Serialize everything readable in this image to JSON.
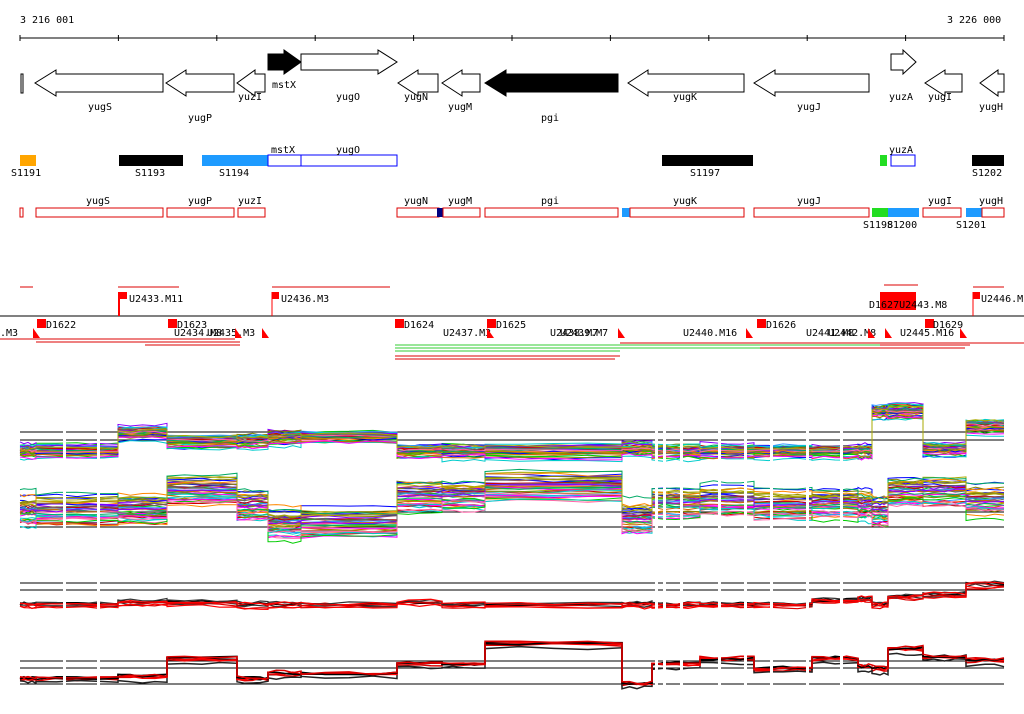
{
  "coords": {
    "start": "3 216 001",
    "end": "3 226 000"
  },
  "colors": {
    "black": "#000000",
    "red": "#ff0000",
    "orange": "#ffa500",
    "sky": "#1e9bff",
    "navy": "#000080",
    "green": "#22dd22",
    "blue_outline": "#0000ff",
    "red_outline": "#dd0000",
    "green_line": "#33cc33"
  },
  "genes": [
    {
      "label": "yugS",
      "dir": "left",
      "filled": false
    },
    {
      "label": "yugP",
      "dir": "left",
      "filled": false
    },
    {
      "label": "yuzI",
      "dir": "left",
      "filled": false
    },
    {
      "label": "mstX",
      "dir": "right",
      "filled": true
    },
    {
      "label": "yugO",
      "dir": "right",
      "filled": false
    },
    {
      "label": "yugN",
      "dir": "left",
      "filled": false
    },
    {
      "label": "yugM",
      "dir": "left",
      "filled": false
    },
    {
      "label": "pgi",
      "dir": "left",
      "filled": true
    },
    {
      "label": "yugK",
      "dir": "left",
      "filled": false
    },
    {
      "label": "yugJ",
      "dir": "left",
      "filled": false
    },
    {
      "label": "yuzA",
      "dir": "right",
      "filled": false
    },
    {
      "label": "yugI",
      "dir": "left",
      "filled": false
    },
    {
      "label": "yugH",
      "dir": "left",
      "filled": false
    }
  ],
  "segments": [
    "S1191",
    "S1193",
    "S1194",
    "S1197",
    "S1202"
  ],
  "segment_genes": [
    "mstX",
    "yugO",
    "yuzA"
  ],
  "transcripts": [
    "yugS",
    "yugP",
    "yuzI",
    "yugN",
    "yugM",
    "pgi",
    "yugK",
    "yugJ",
    "yugI",
    "yugH"
  ],
  "transcript_segments": [
    "S1198",
    "S1200",
    "S1201"
  ],
  "probes_top": [
    "U2433.M11",
    "U2436.M3",
    "U2446.M"
  ],
  "probes_top_dense": "D1627U2443.M8",
  "probes_bottom": [
    ".M3",
    "D1622",
    "D1623",
    "U2434.M8",
    "U2435.M3",
    "D1624",
    "U2437.M3",
    "D1625",
    "U2438.M7",
    "U2439.M7",
    "U2440.M16",
    "D1626",
    "U2441.M8",
    "U2442.M8",
    "U2445.M16",
    "D1629"
  ]
}
